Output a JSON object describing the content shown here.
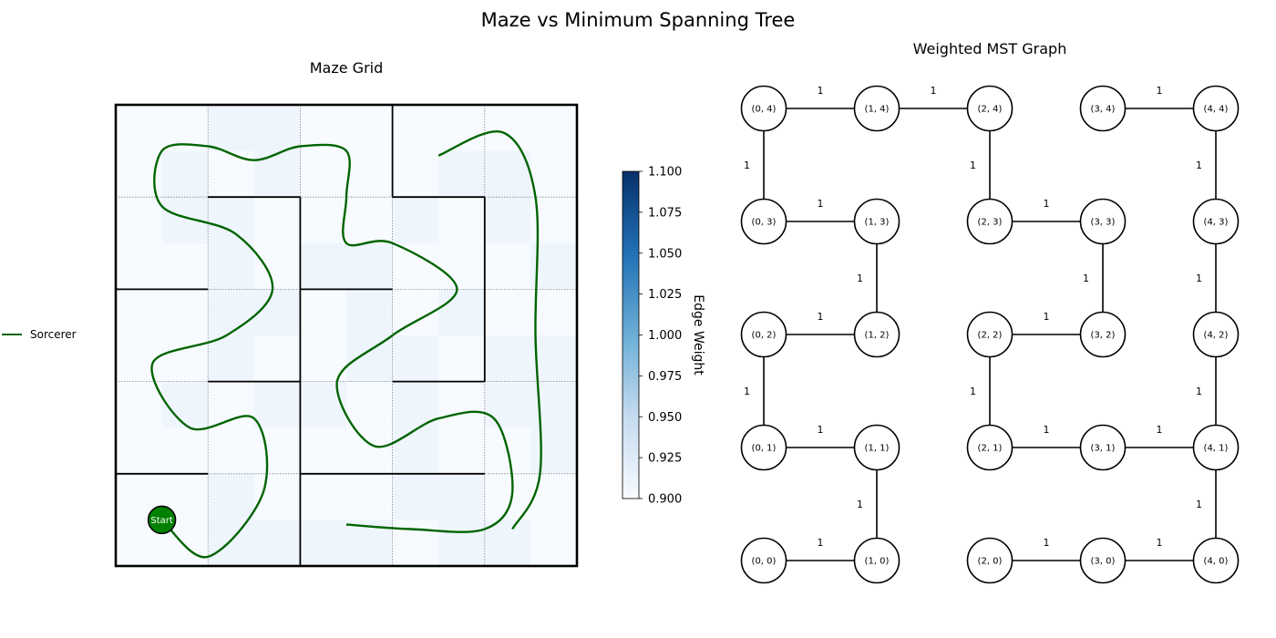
{
  "title": "Maze vs Minimum Spanning Tree",
  "chart_data": [
    {
      "type": "heatmap",
      "title": "Maze Grid",
      "grid_size": 5,
      "fine_cells": 10,
      "colorbar": {
        "label": "Edge Weight",
        "min": 0.9,
        "max": 1.1,
        "ticks": [
          "0.900",
          "0.925",
          "0.950",
          "0.975",
          "1.000",
          "1.025",
          "1.050",
          "1.075",
          "1.100"
        ],
        "colormap": "Blues",
        "color_low": "#f7fbff",
        "color_high": "#08306b"
      },
      "shaded_cells_note": "light checker cells (value just above minimum) listed as [col,row] with row 0 at top",
      "shaded_cells": [
        [
          2,
          0
        ],
        [
          3,
          0
        ],
        [
          1,
          1
        ],
        [
          3,
          1
        ],
        [
          7,
          1
        ],
        [
          8,
          1
        ],
        [
          2,
          2
        ],
        [
          6,
          2
        ],
        [
          8,
          2
        ],
        [
          9,
          3
        ],
        [
          2,
          3
        ],
        [
          4,
          3
        ],
        [
          5,
          4
        ],
        [
          7,
          4
        ],
        [
          2,
          5
        ],
        [
          5,
          5
        ],
        [
          6,
          5
        ],
        [
          8,
          5
        ],
        [
          9,
          6
        ],
        [
          1,
          6
        ],
        [
          3,
          6
        ],
        [
          6,
          7
        ],
        [
          9,
          7
        ],
        [
          2,
          8
        ],
        [
          6,
          8
        ],
        [
          7,
          8
        ],
        [
          2,
          9
        ],
        [
          5,
          9
        ],
        [
          8,
          9
        ],
        [
          4,
          6
        ],
        [
          1,
          2
        ],
        [
          5,
          3
        ],
        [
          2,
          4
        ],
        [
          9,
          5
        ],
        [
          3,
          4
        ],
        [
          6,
          6
        ],
        [
          8,
          6
        ],
        [
          3,
          9
        ],
        [
          4,
          9
        ],
        [
          7,
          9
        ]
      ],
      "walls_note": "maze walls in grid units, origin top-left of the 5x5 maze",
      "walls": [
        [
          3,
          0,
          3,
          1
        ],
        [
          1,
          1,
          2,
          1
        ],
        [
          3,
          1,
          4,
          1
        ],
        [
          2,
          1,
          2,
          2
        ],
        [
          4,
          1,
          4,
          3
        ],
        [
          0,
          2,
          1,
          2
        ],
        [
          2,
          2,
          3,
          2
        ],
        [
          2,
          2,
          2,
          3
        ],
        [
          1,
          3,
          2,
          3
        ],
        [
          3,
          3,
          4,
          3
        ],
        [
          2,
          3,
          2,
          5
        ],
        [
          0,
          4,
          1,
          4
        ],
        [
          2,
          4,
          4,
          4
        ]
      ],
      "path_series": {
        "name": "Sorcerer",
        "color": "#006400",
        "points": [
          [
            0.5,
            4.5
          ],
          [
            1.0,
            4.9
          ],
          [
            1.6,
            4.2
          ],
          [
            1.5,
            3.4
          ],
          [
            0.8,
            3.5
          ],
          [
            0.4,
            2.8
          ],
          [
            1.2,
            2.5
          ],
          [
            1.7,
            2.0
          ],
          [
            1.3,
            1.4
          ],
          [
            0.5,
            1.1
          ],
          [
            0.5,
            0.5
          ],
          [
            1.0,
            0.45
          ],
          [
            1.5,
            0.6
          ],
          [
            2.0,
            0.45
          ],
          [
            2.5,
            0.5
          ],
          [
            2.5,
            1.0
          ],
          [
            2.5,
            1.5
          ],
          [
            3.0,
            1.5
          ],
          [
            3.7,
            2.0
          ],
          [
            3.0,
            2.5
          ],
          [
            2.4,
            3.0
          ],
          [
            2.8,
            3.7
          ],
          [
            3.5,
            3.4
          ],
          [
            4.1,
            3.4
          ],
          [
            4.3,
            4.2
          ],
          [
            4.0,
            4.6
          ],
          [
            3.2,
            4.6
          ],
          [
            2.5,
            4.55
          ]
        ],
        "tail": [
          [
            3.5,
            0.55
          ],
          [
            4.2,
            0.3
          ],
          [
            4.55,
            1.0
          ],
          [
            4.55,
            2.5
          ],
          [
            4.6,
            4.0
          ],
          [
            4.3,
            4.6
          ]
        ]
      },
      "start_label": "Start",
      "legend": [
        {
          "label": "Sorcerer",
          "color": "#006400"
        }
      ],
      "grid": true
    },
    {
      "type": "network",
      "title": "Weighted MST Graph",
      "nodes": [
        {
          "label": "(0, 0)",
          "x": 0,
          "y": 0
        },
        {
          "label": "(1, 0)",
          "x": 1,
          "y": 0
        },
        {
          "label": "(2, 0)",
          "x": 2,
          "y": 0
        },
        {
          "label": "(3, 0)",
          "x": 3,
          "y": 0
        },
        {
          "label": "(4, 0)",
          "x": 4,
          "y": 0
        },
        {
          "label": "(0, 1)",
          "x": 0,
          "y": 1
        },
        {
          "label": "(1, 1)",
          "x": 1,
          "y": 1
        },
        {
          "label": "(2, 1)",
          "x": 2,
          "y": 1
        },
        {
          "label": "(3, 1)",
          "x": 3,
          "y": 1
        },
        {
          "label": "(4, 1)",
          "x": 4,
          "y": 1
        },
        {
          "label": "(0, 2)",
          "x": 0,
          "y": 2
        },
        {
          "label": "(1, 2)",
          "x": 1,
          "y": 2
        },
        {
          "label": "(2, 2)",
          "x": 2,
          "y": 2
        },
        {
          "label": "(3, 2)",
          "x": 3,
          "y": 2
        },
        {
          "label": "(4, 2)",
          "x": 4,
          "y": 2
        },
        {
          "label": "(0, 3)",
          "x": 0,
          "y": 3
        },
        {
          "label": "(1, 3)",
          "x": 1,
          "y": 3
        },
        {
          "label": "(2, 3)",
          "x": 2,
          "y": 3
        },
        {
          "label": "(3, 3)",
          "x": 3,
          "y": 3
        },
        {
          "label": "(4, 3)",
          "x": 4,
          "y": 3
        },
        {
          "label": "(0, 4)",
          "x": 0,
          "y": 4
        },
        {
          "label": "(1, 4)",
          "x": 1,
          "y": 4
        },
        {
          "label": "(2, 4)",
          "x": 2,
          "y": 4
        },
        {
          "label": "(3, 4)",
          "x": 3,
          "y": 4
        },
        {
          "label": "(4, 4)",
          "x": 4,
          "y": 4
        }
      ],
      "edges": [
        {
          "from": "(0, 4)",
          "to": "(1, 4)",
          "weight": "1"
        },
        {
          "from": "(1, 4)",
          "to": "(2, 4)",
          "weight": "1"
        },
        {
          "from": "(3, 4)",
          "to": "(4, 4)",
          "weight": "1"
        },
        {
          "from": "(0, 4)",
          "to": "(0, 3)",
          "weight": "1"
        },
        {
          "from": "(2, 4)",
          "to": "(2, 3)",
          "weight": "1"
        },
        {
          "from": "(4, 4)",
          "to": "(4, 3)",
          "weight": "1"
        },
        {
          "from": "(0, 3)",
          "to": "(1, 3)",
          "weight": "1"
        },
        {
          "from": "(2, 3)",
          "to": "(3, 3)",
          "weight": "1"
        },
        {
          "from": "(1, 3)",
          "to": "(1, 2)",
          "weight": "1"
        },
        {
          "from": "(3, 3)",
          "to": "(3, 2)",
          "weight": "1"
        },
        {
          "from": "(4, 3)",
          "to": "(4, 2)",
          "weight": "1"
        },
        {
          "from": "(0, 2)",
          "to": "(1, 2)",
          "weight": "1"
        },
        {
          "from": "(2, 2)",
          "to": "(3, 2)",
          "weight": "1"
        },
        {
          "from": "(0, 2)",
          "to": "(0, 1)",
          "weight": "1"
        },
        {
          "from": "(2, 2)",
          "to": "(2, 1)",
          "weight": "1"
        },
        {
          "from": "(4, 2)",
          "to": "(4, 1)",
          "weight": "1"
        },
        {
          "from": "(0, 1)",
          "to": "(1, 1)",
          "weight": "1"
        },
        {
          "from": "(2, 1)",
          "to": "(3, 1)",
          "weight": "1"
        },
        {
          "from": "(3, 1)",
          "to": "(4, 1)",
          "weight": "1"
        },
        {
          "from": "(1, 1)",
          "to": "(1, 0)",
          "weight": "1"
        },
        {
          "from": "(4, 1)",
          "to": "(4, 0)",
          "weight": "1"
        },
        {
          "from": "(0, 0)",
          "to": "(1, 0)",
          "weight": "1"
        },
        {
          "from": "(2, 0)",
          "to": "(3, 0)",
          "weight": "1"
        },
        {
          "from": "(3, 0)",
          "to": "(4, 0)",
          "weight": "1"
        }
      ]
    }
  ]
}
